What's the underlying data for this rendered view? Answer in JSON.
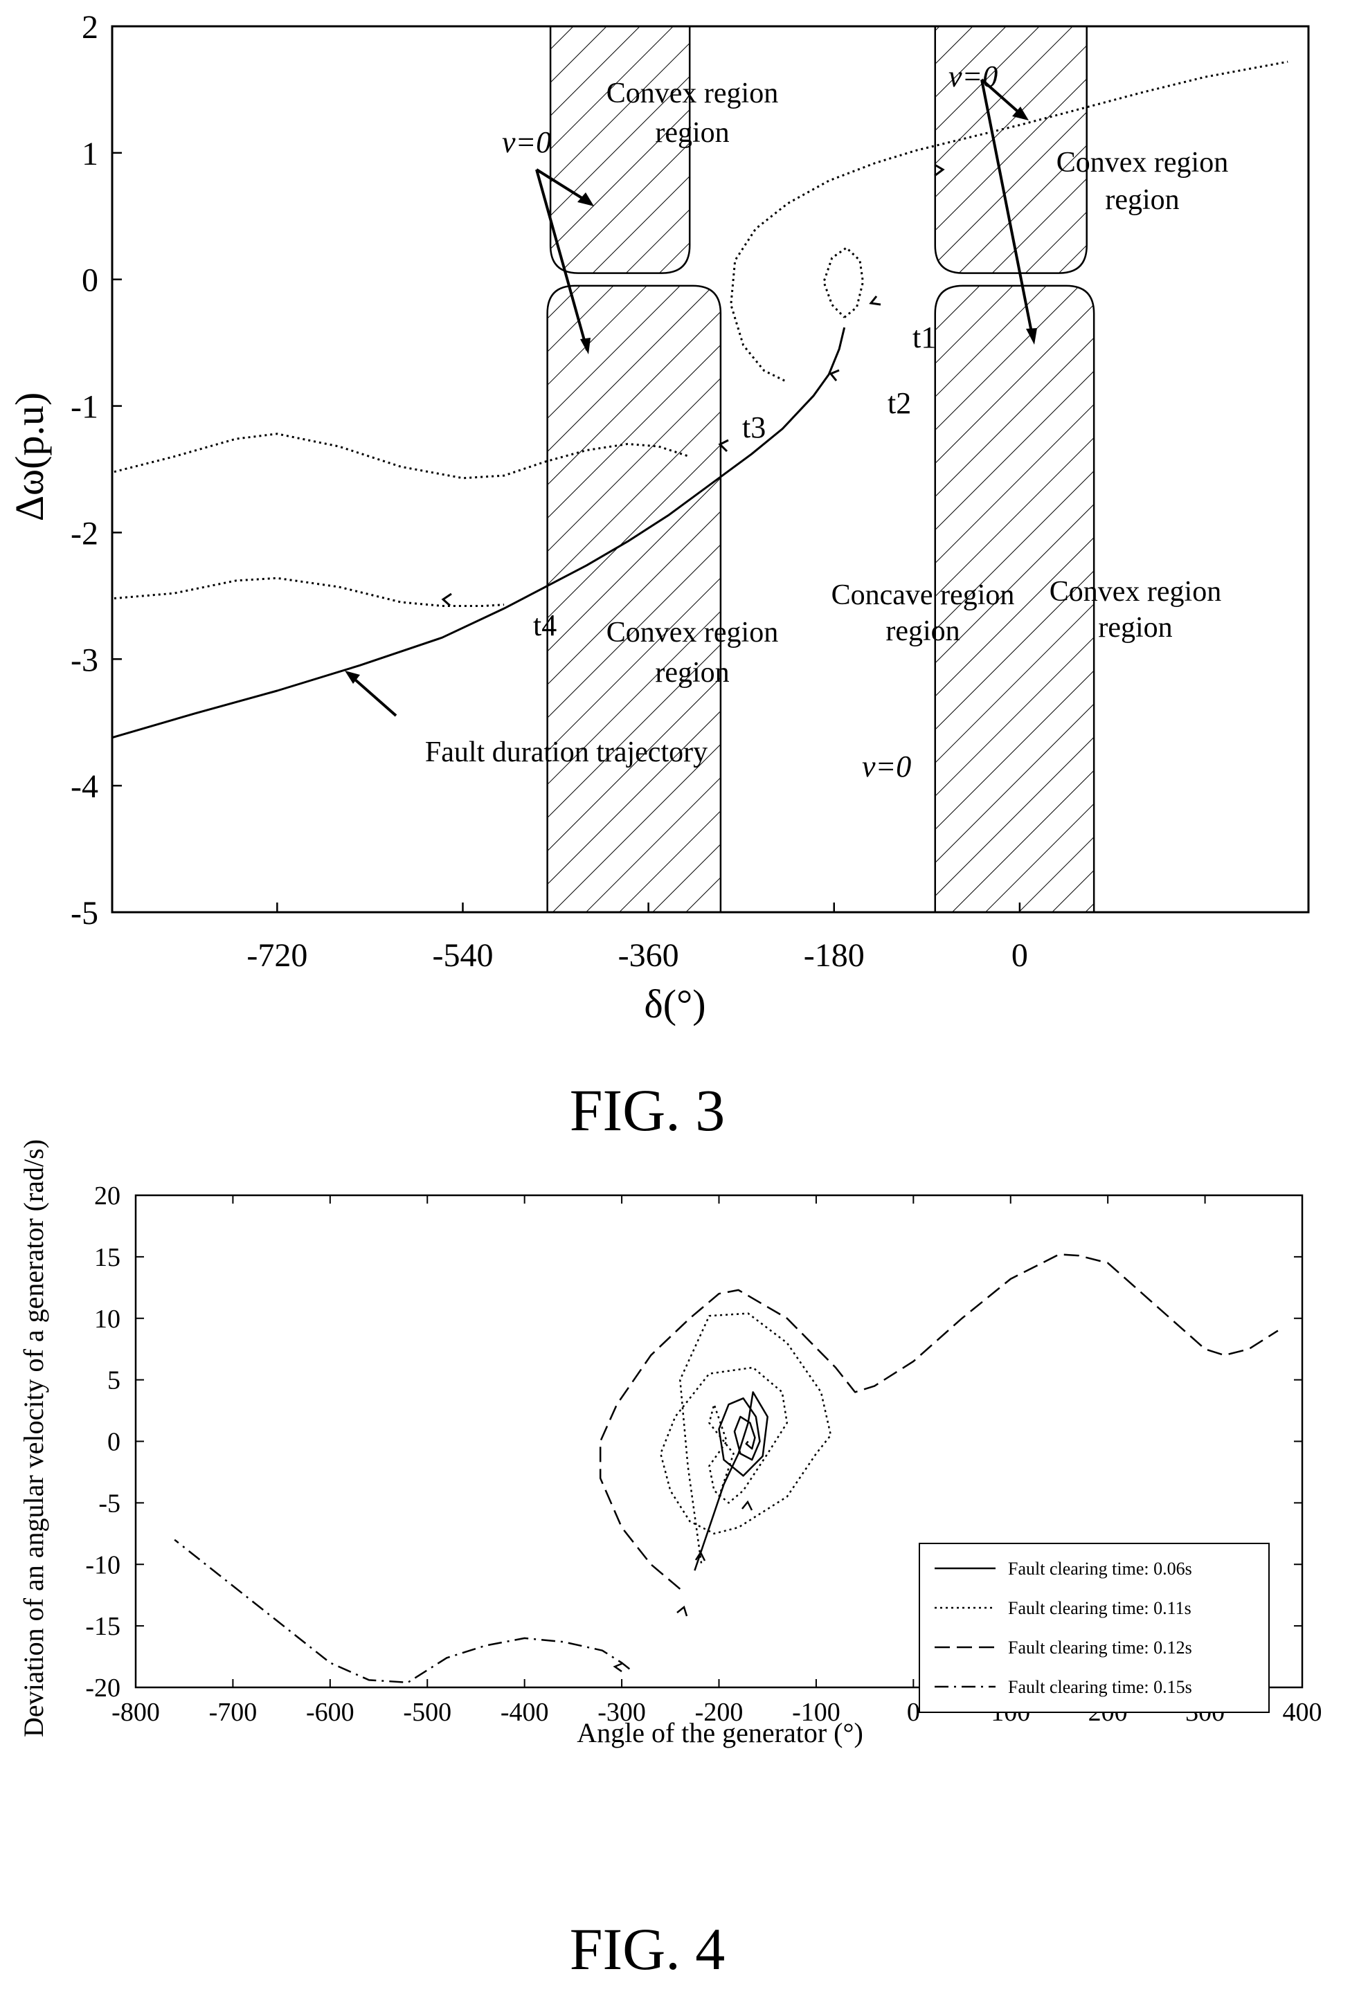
{
  "figures": [
    {
      "caption": "FIG. 3"
    },
    {
      "caption": "FIG. 4"
    }
  ],
  "chart_data": [
    {
      "type": "line",
      "caption": "FIG. 3",
      "xlabel": "δ(°)",
      "ylabel": "Δω(p.u)",
      "xlim": [
        -880,
        280
      ],
      "ylim": [
        -5,
        2
      ],
      "xticks": [
        -720,
        -540,
        -360,
        -180,
        0
      ],
      "yticks": [
        2,
        1,
        0,
        -1,
        -2,
        -3,
        -4,
        -5
      ],
      "hatched_regions": [
        {
          "label": "Convex region",
          "x": [
            -455,
            -320
          ],
          "y": [
            0.05,
            2
          ]
        },
        {
          "label": "Convex region",
          "x": [
            -458,
            -290
          ],
          "y": [
            -5,
            -0.05
          ]
        },
        {
          "label": "Convex region",
          "x": [
            -82,
            65
          ],
          "y": [
            0.05,
            2
          ]
        },
        {
          "label": "Convex region",
          "x": [
            -82,
            72
          ],
          "y": [
            -5,
            -0.05
          ]
        }
      ],
      "series": [
        {
          "style": "solid",
          "role": "fault",
          "x": [
            -880,
            -800,
            -720,
            -640,
            -560,
            -500,
            -460,
            -420,
            -380,
            -340,
            -300,
            -260,
            -230,
            -200,
            -185,
            -175,
            -170
          ],
          "y": [
            -3.62,
            -3.43,
            -3.25,
            -3.05,
            -2.83,
            -2.6,
            -2.43,
            -2.26,
            -2.07,
            -1.86,
            -1.62,
            -1.38,
            -1.18,
            -0.92,
            -0.75,
            -0.55,
            -0.38
          ]
        },
        {
          "style": "dotted",
          "x": [
            -170,
            -158,
            -152,
            -155,
            -168,
            -182,
            -190,
            -182,
            -170
          ],
          "y": [
            -0.3,
            -0.22,
            -0.02,
            0.15,
            0.25,
            0.17,
            -0.02,
            -0.2,
            -0.3
          ]
        },
        {
          "style": "dotted",
          "x": [
            -228,
            -248,
            -268,
            -280,
            -276,
            -256,
            -225,
            -185,
            -140,
            -100,
            -50,
            0,
            60,
            120,
            180,
            260
          ],
          "y": [
            -0.8,
            -0.72,
            -0.52,
            -0.2,
            0.15,
            0.4,
            0.6,
            0.78,
            0.92,
            1.02,
            1.12,
            1.22,
            1.35,
            1.48,
            1.6,
            1.72
          ]
        },
        {
          "style": "dotted",
          "x": [
            -878,
            -820,
            -760,
            -720,
            -660,
            -600,
            -540,
            -500,
            -460,
            -420,
            -380,
            -350,
            -320
          ],
          "y": [
            -1.52,
            -1.4,
            -1.26,
            -1.22,
            -1.32,
            -1.48,
            -1.57,
            -1.55,
            -1.44,
            -1.35,
            -1.3,
            -1.32,
            -1.4
          ]
        },
        {
          "style": "dotted",
          "x": [
            -878,
            -820,
            -760,
            -720,
            -660,
            -600,
            -560,
            -520,
            -500
          ],
          "y": [
            -2.52,
            -2.48,
            -2.38,
            -2.36,
            -2.43,
            -2.55,
            -2.58,
            -2.58,
            -2.57
          ]
        }
      ],
      "annotations": [
        "Convex region",
        "Convex region",
        "Convex region",
        "Convex region",
        "Concave region",
        "v=0",
        "v=0",
        "v=0",
        "Fault duration trajectory",
        "t1",
        "t2",
        "t3",
        "t4"
      ]
    },
    {
      "type": "line",
      "caption": "FIG. 4",
      "xlabel": "Angle of the generator (°)",
      "ylabel": "Deviation of an angular velocity of a generator (rad/s)",
      "xlim": [
        -800,
        400
      ],
      "ylim": [
        -20,
        20
      ],
      "xticks": [
        -800,
        -700,
        -600,
        -500,
        -400,
        -300,
        -200,
        -100,
        0,
        100,
        200,
        300,
        400
      ],
      "yticks": [
        20,
        15,
        10,
        5,
        0,
        -5,
        -10,
        -15,
        -20
      ],
      "legend_position": "bottom-right",
      "series": [
        {
          "name": "Fault clearing time: 0.06s",
          "style": "solid",
          "x": [
            -225,
            -210,
            -195,
            -180,
            -170,
            -165,
            -150,
            -155,
            -175,
            -195,
            -200,
            -190,
            -175,
            -162,
            -158,
            -166,
            -178,
            -184,
            -178,
            -168,
            -163,
            -166,
            -172,
            -170
          ],
          "y": [
            -10.5,
            -7,
            -3.5,
            -1,
            1.5,
            4,
            2,
            -1.2,
            -2.8,
            -1.5,
            1,
            3,
            3.5,
            2,
            0,
            -1.5,
            -1,
            0.8,
            2,
            1.5,
            0.3,
            -0.6,
            -0.2,
            0
          ]
        },
        {
          "name": "Fault clearing time: 0.11s",
          "style": "dotted",
          "x": [
            -200,
            -185,
            -210,
            -205,
            -192,
            -210,
            -205,
            -190,
            -175,
            -150,
            -130,
            -135,
            -165,
            -210,
            -245,
            -260,
            -250,
            -230,
            -205,
            -180,
            -130,
            -100,
            -85,
            -95,
            -130,
            -170,
            -210,
            -240,
            -232,
            -218
          ],
          "y": [
            -4.5,
            -1,
            1.5,
            3,
            0,
            -2,
            -4,
            -5,
            -4,
            -1,
            1.5,
            4,
            6,
            5.5,
            2,
            -1,
            -4,
            -6.5,
            -7.5,
            -7,
            -4.5,
            -1,
            0.5,
            4,
            8,
            10.4,
            10.2,
            5,
            -2,
            -10
          ]
        },
        {
          "name": "Fault clearing time: 0.12s",
          "style": "dashed",
          "x": [
            -240,
            -270,
            -300,
            -322,
            -322,
            -305,
            -270,
            -230,
            -200,
            -180,
            -130,
            -80,
            -60,
            -40,
            0,
            50,
            100,
            150,
            170,
            200,
            250,
            300,
            320,
            345,
            375
          ],
          "y": [
            -12,
            -10,
            -7,
            -3,
            0,
            3,
            7,
            10,
            12,
            12.3,
            10,
            6,
            4,
            4.5,
            6.5,
            10,
            13.2,
            15.2,
            15.1,
            14.5,
            11,
            7.5,
            7,
            7.5,
            9
          ]
        },
        {
          "name": "Fault clearing time: 0.15s",
          "style": "dashdot",
          "x": [
            -292,
            -300,
            -320,
            -360,
            -400,
            -440,
            -480,
            -520,
            -560,
            -600,
            -640,
            -680,
            -720,
            -760
          ],
          "y": [
            -18.5,
            -18,
            -17,
            -16.3,
            -16,
            -16.6,
            -17.6,
            -19.6,
            -19.4,
            -18,
            -15.5,
            -13,
            -10.5,
            -8
          ]
        }
      ]
    }
  ]
}
